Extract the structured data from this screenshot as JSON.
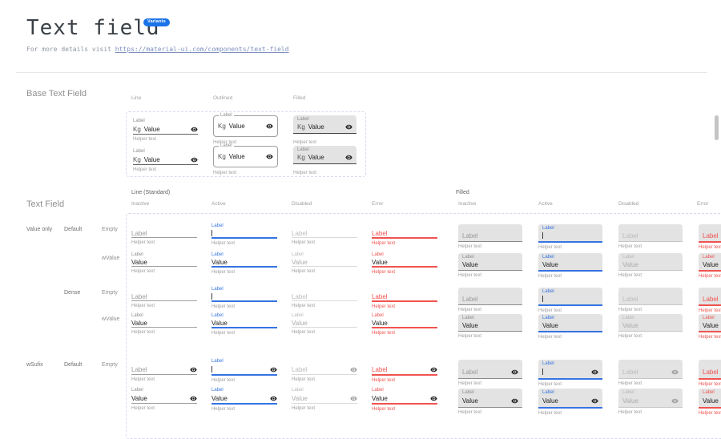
{
  "page": {
    "title": "Text field",
    "badge": "Variants",
    "subtitle_prefix": "For more details visit",
    "subtitle_link": "https://material-ui.com/components/text-field"
  },
  "colors": {
    "accent_blue": "#3574e2",
    "error_red": "#ef5350",
    "badge_blue": "#1a73e8",
    "filled_background": "#e3e3e3",
    "dashed_border": "#d9d9ee"
  },
  "icons": {
    "field_suffix": "visibility-icon"
  },
  "base_section": {
    "title": "Base Text Field",
    "columns": [
      "Line",
      "Outlined",
      "Filled"
    ],
    "field": {
      "label": "Label",
      "prefix": "Kg",
      "value": "Value",
      "helper": "Helper text"
    }
  },
  "grid_section": {
    "title": "Text Field",
    "group_line": "Line (Standard)",
    "group_filled": "Filled",
    "states": [
      "Inactive",
      "Active",
      "Disabled",
      "Error"
    ],
    "strings": {
      "label": "Label",
      "value": "Value",
      "helper": "Helper text"
    },
    "rows": [
      {
        "variant": "Value only",
        "density": "Default",
        "fill": "Empty",
        "content": "empty",
        "suffix": false
      },
      {
        "variant": "",
        "density": "",
        "fill": "wValue",
        "content": "value",
        "suffix": false
      },
      {
        "variant": "",
        "density": "Dense",
        "fill": "Empty",
        "content": "empty",
        "suffix": false
      },
      {
        "variant": "",
        "density": "",
        "fill": "wValue",
        "content": "value",
        "suffix": false
      },
      {
        "variant": "wSufix",
        "density": "Default",
        "fill": "Empty",
        "content": "empty",
        "suffix": true
      },
      {
        "variant": "",
        "density": "",
        "fill": "",
        "content": "value",
        "suffix": true
      }
    ]
  }
}
